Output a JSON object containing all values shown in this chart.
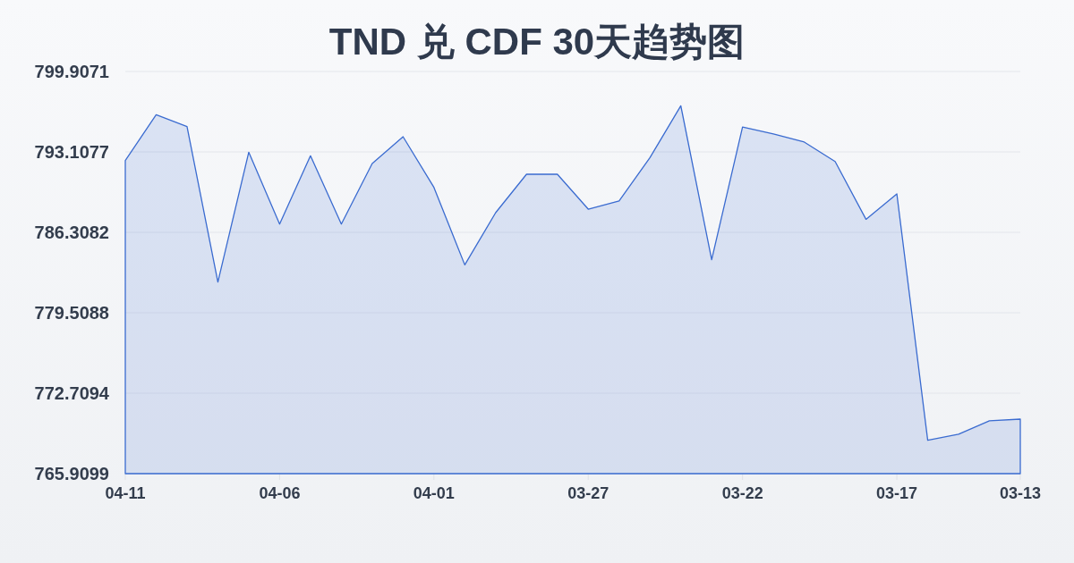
{
  "chart_data": {
    "type": "area",
    "title": "TND 兑 CDF 30天趋势图",
    "categories": [
      "04-11",
      null,
      null,
      null,
      null,
      "04-06",
      null,
      null,
      null,
      null,
      "04-01",
      null,
      null,
      null,
      null,
      "03-27",
      null,
      null,
      null,
      null,
      "03-22",
      null,
      null,
      null,
      null,
      "03-17",
      null,
      null,
      null,
      "03-13"
    ],
    "values": [
      792.38,
      796.25,
      795.25,
      782.1,
      793.08,
      787.01,
      792.78,
      787.01,
      792.13,
      794.39,
      790.11,
      783.56,
      787.97,
      791.22,
      791.22,
      788.27,
      788.97,
      792.62,
      797.01,
      783.99,
      795.22,
      794.62,
      793.94,
      792.3,
      787.41,
      789.56,
      768.73,
      769.25,
      770.37,
      770.52
    ],
    "color": "#3a6bd0",
    "ylim": [
      765.9099,
      799.9071
    ],
    "yticks": [
      765.9099,
      772.7094,
      779.5088,
      786.3082,
      793.1077,
      799.9071
    ],
    "grid": "y"
  }
}
